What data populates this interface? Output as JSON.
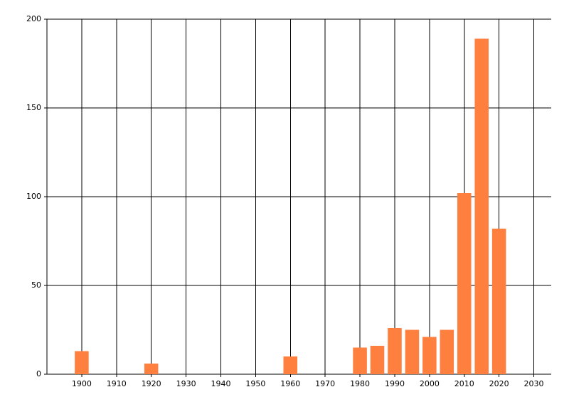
{
  "chart_data": {
    "type": "bar",
    "x": [
      1900,
      1920,
      1960,
      1980,
      1985,
      1990,
      1995,
      2000,
      2005,
      2010,
      2015,
      2020
    ],
    "values": [
      13,
      6,
      10,
      15,
      16,
      26,
      25,
      21,
      25,
      102,
      189,
      82
    ],
    "color": "#ff7f3f",
    "xlim": [
      1890,
      2035
    ],
    "xticks": [
      1900,
      1910,
      1920,
      1930,
      1940,
      1950,
      1960,
      1970,
      1980,
      1990,
      2000,
      2010,
      2020,
      2030
    ],
    "ylim": [
      0,
      200
    ],
    "yticks": [
      0,
      50,
      100,
      150,
      200
    ],
    "grid": true
  }
}
